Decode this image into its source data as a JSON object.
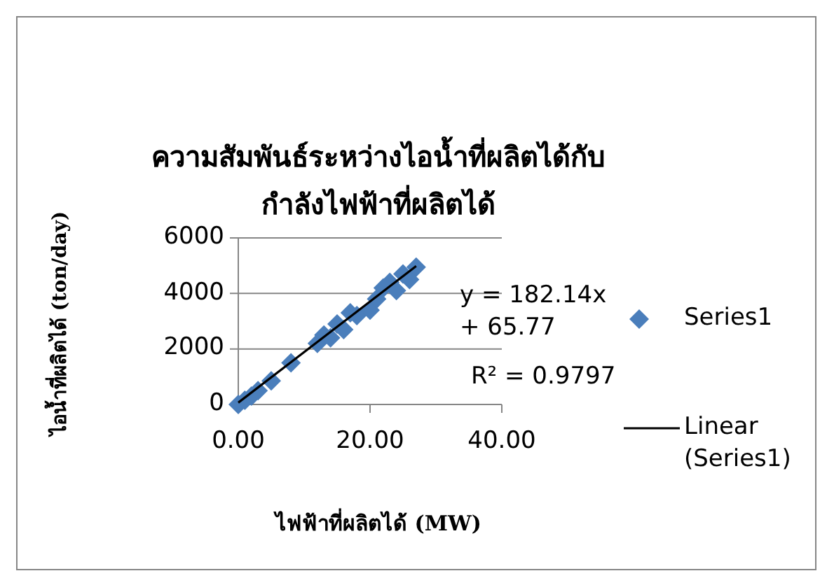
{
  "chart_data": {
    "type": "scatter",
    "title": "ความสัมพันธ์ระหว่างไอน้ำที่ผลิตได้กับกำลังไฟฟ้าที่ผลิตได้",
    "xlabel": "ไฟฟ้าที่ผลิตได้ (MW)",
    "ylabel": "ไอน้ำที่ผลิตได้ (ton/day)",
    "xlim": [
      0,
      40
    ],
    "ylim": [
      0,
      6000
    ],
    "xticks": [
      {
        "value": 0,
        "label": "0.00"
      },
      {
        "value": 20,
        "label": "20.00"
      },
      {
        "value": 40,
        "label": "40.00"
      }
    ],
    "yticks": [
      0,
      2000,
      4000,
      6000
    ],
    "grid": "y",
    "legend": "right",
    "annotations": [
      "y = 182.14x + 65.77",
      "R² = 0.9797"
    ],
    "series": [
      {
        "name": "Series1",
        "color": "#4a7ebb",
        "marker": "diamond",
        "x": [
          0,
          1,
          2,
          3,
          5,
          8,
          12,
          13,
          14,
          15,
          16,
          17,
          18,
          20,
          21,
          22,
          23,
          24,
          25,
          26,
          27
        ],
        "values": [
          0,
          150,
          300,
          500,
          850,
          1500,
          2200,
          2500,
          2400,
          2900,
          2700,
          3300,
          3200,
          3400,
          3800,
          4200,
          4400,
          4100,
          4700,
          4500,
          4950
        ]
      },
      {
        "name": "Linear (Series1)",
        "color": "#000000",
        "type": "line",
        "marker": "none",
        "x": [
          0,
          27
        ],
        "values": [
          66,
          4984
        ]
      }
    ]
  }
}
